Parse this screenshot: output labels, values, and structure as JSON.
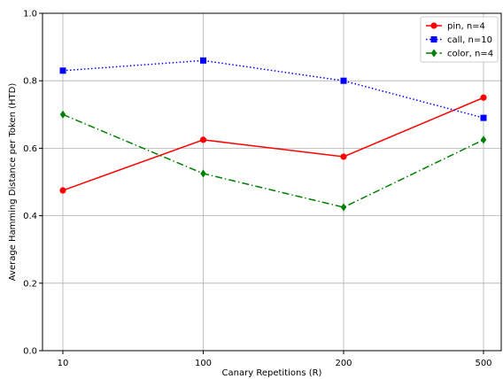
{
  "chart_data": {
    "type": "line",
    "title": "",
    "xlabel": "Canary Repetitions (R)",
    "ylabel": "Average Hamming Distance per Token (HTD)",
    "categories": [
      "10",
      "100",
      "200",
      "500"
    ],
    "ylim": [
      0.0,
      1.0
    ],
    "yticks": [
      "0.0",
      "0.2",
      "0.4",
      "0.6",
      "0.8",
      "1.0"
    ],
    "grid": true,
    "legend_position": "top-right",
    "series": [
      {
        "name": "pin, n=4",
        "values": [
          0.475,
          0.625,
          0.575,
          0.75
        ],
        "color": "#ff0000",
        "marker": "circle",
        "line_style": "solid"
      },
      {
        "name": "call, n=10",
        "values": [
          0.83,
          0.86,
          0.8,
          0.69
        ],
        "color": "#0000ff",
        "marker": "square",
        "line_style": "dotted"
      },
      {
        "name": "color, n=4",
        "values": [
          0.7,
          0.525,
          0.425,
          0.625
        ],
        "color": "#008000",
        "marker": "diamond",
        "line_style": "dashdot"
      }
    ]
  }
}
